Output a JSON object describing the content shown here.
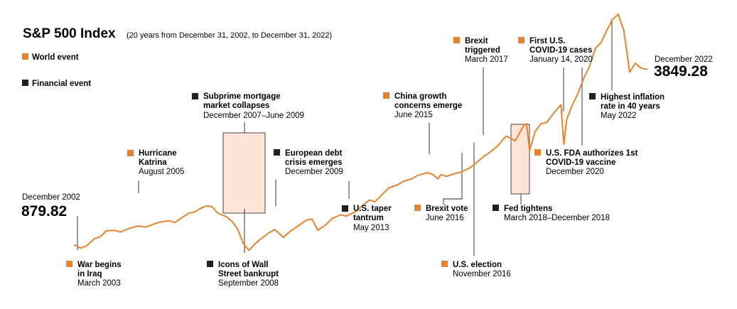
{
  "colors": {
    "line": "#e8822e",
    "world": "#e8822e",
    "financial": "#231f20",
    "shade_fill": "#fde4d6",
    "shade_stroke": "#231f20"
  },
  "chart_data": {
    "type": "line",
    "title": "S&P 500 Index",
    "subtitle": "(20 years from December 31, 2002, to December 31, 2022)",
    "xlabel": "",
    "ylabel": "",
    "xlim": [
      2003.0,
      2023.0
    ],
    "ylim": [
      700,
      4900
    ],
    "grid": false,
    "legend": [
      {
        "name": "World event",
        "kind": "world"
      },
      {
        "name": "Financial event",
        "kind": "financial"
      }
    ],
    "start": {
      "label": "December 2002",
      "value": "879.82"
    },
    "end": {
      "label": "December 2022",
      "value": "3849.28"
    },
    "series": [
      {
        "name": "S&P 500 Index",
        "x": [
          2003.0,
          2003.2,
          2003.4,
          2003.7,
          2003.9,
          2004.1,
          2004.4,
          2004.6,
          2004.9,
          2005.2,
          2005.5,
          2005.8,
          2006.0,
          2006.3,
          2006.5,
          2006.8,
          2007.0,
          2007.2,
          2007.4,
          2007.6,
          2007.8,
          2008.0,
          2008.3,
          2008.5,
          2008.7,
          2008.9,
          2009.1,
          2009.3,
          2009.5,
          2009.8,
          2010.0,
          2010.3,
          2010.5,
          2010.8,
          2011.1,
          2011.3,
          2011.5,
          2011.8,
          2012.0,
          2012.3,
          2012.5,
          2012.8,
          2013.1,
          2013.3,
          2013.5,
          2013.8,
          2014.0,
          2014.3,
          2014.5,
          2014.8,
          2015.0,
          2015.3,
          2015.5,
          2015.7,
          2015.8,
          2016.0,
          2016.3,
          2016.5,
          2016.8,
          2017.0,
          2017.3,
          2017.5,
          2017.8,
          2018.0,
          2018.1,
          2018.4,
          2018.7,
          2018.8,
          2018.9,
          2019.1,
          2019.3,
          2019.5,
          2019.8,
          2020.0,
          2020.1,
          2020.2,
          2020.4,
          2020.6,
          2020.8,
          2021.0,
          2021.2,
          2021.4,
          2021.6,
          2021.8,
          2022.0,
          2022.2,
          2022.4,
          2022.6,
          2022.8,
          2023.0
        ],
        "values": [
          880,
          830,
          860,
          990,
          1020,
          1120,
          1130,
          1100,
          1160,
          1200,
          1185,
          1240,
          1270,
          1290,
          1260,
          1360,
          1420,
          1440,
          1500,
          1540,
          1530,
          1420,
          1360,
          1280,
          1150,
          900,
          790,
          900,
          980,
          1090,
          1140,
          1010,
          1100,
          1200,
          1300,
          1320,
          1130,
          1230,
          1330,
          1390,
          1370,
          1440,
          1560,
          1640,
          1610,
          1760,
          1850,
          1900,
          1960,
          2000,
          2060,
          2100,
          2080,
          2000,
          2070,
          2040,
          2090,
          2110,
          2180,
          2250,
          2380,
          2440,
          2560,
          2680,
          2720,
          2640,
          2900,
          2930,
          2480,
          2800,
          2930,
          2950,
          3140,
          3250,
          2580,
          3000,
          3250,
          3450,
          3700,
          3900,
          4200,
          4300,
          4500,
          4690,
          4780,
          4500,
          3800,
          3950,
          3870,
          3849
        ]
      }
    ],
    "annotations": [
      {
        "id": "war-iraq",
        "kind": "world",
        "title": [
          "War begins",
          "in Iraq"
        ],
        "date": "March 2003",
        "shade": false
      },
      {
        "id": "katrina",
        "kind": "world",
        "title": [
          "Hurricane",
          "Katrina"
        ],
        "date": "August 2005",
        "shade": false
      },
      {
        "id": "subprime",
        "kind": "financial",
        "title": [
          "Subprime mortgage",
          "market collapses"
        ],
        "date": "December 2007–June 2009",
        "shade": true
      },
      {
        "id": "icons-wall-street",
        "kind": "financial",
        "title": [
          "Icons of Wall",
          "Street bankrupt"
        ],
        "date": "September 2008",
        "shade": false
      },
      {
        "id": "european-debt",
        "kind": "financial",
        "title": [
          "European debt",
          "crisis emerges"
        ],
        "date": "December 2009",
        "shade": false
      },
      {
        "id": "taper-tantrum",
        "kind": "financial",
        "title": [
          "U.S. taper",
          "tantrum"
        ],
        "date": "May 2013",
        "shade": false
      },
      {
        "id": "china-growth",
        "kind": "world",
        "title": [
          "China growth",
          "concerns emerge"
        ],
        "date": "June 2015",
        "shade": false
      },
      {
        "id": "brexit-vote",
        "kind": "world",
        "title": [
          "Brexit vote"
        ],
        "date": "June 2016",
        "shade": false
      },
      {
        "id": "us-election",
        "kind": "world",
        "title": [
          "U.S. election"
        ],
        "date": "November 2016",
        "shade": false
      },
      {
        "id": "brexit-triggered",
        "kind": "world",
        "title": [
          "Brexit",
          "triggered"
        ],
        "date": "March 2017",
        "shade": false
      },
      {
        "id": "fed-tightens",
        "kind": "financial",
        "title": [
          "Fed tightens"
        ],
        "date": "March 2018–December 2018",
        "shade": true
      },
      {
        "id": "covid-cases",
        "kind": "world",
        "title": [
          "First U.S.",
          "COVID-19 cases"
        ],
        "date": "January 14, 2020",
        "shade": false
      },
      {
        "id": "covid-vaccine",
        "kind": "world",
        "title": [
          "U.S. FDA authorizes 1st",
          "COVID-19 vaccine"
        ],
        "date": "December 2020",
        "shade": false
      },
      {
        "id": "inflation",
        "kind": "financial",
        "title": [
          "Highest inflation",
          "rate in 40 years"
        ],
        "date": "May 2022",
        "shade": false
      }
    ]
  }
}
